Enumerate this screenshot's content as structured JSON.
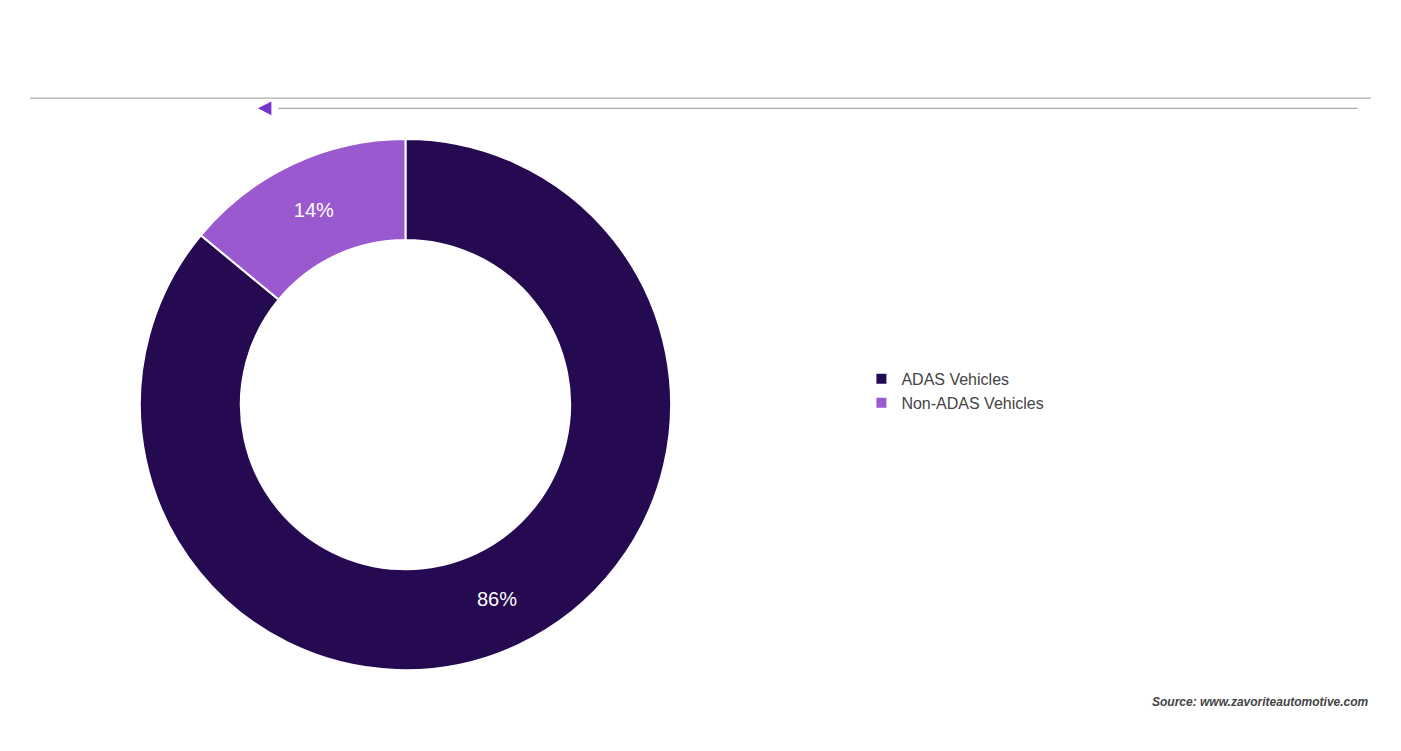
{
  "chart_data": {
    "type": "donut",
    "categories": [
      "ADAS Vehicles",
      "Non-ADAS Vehicles"
    ],
    "values": [
      86,
      14
    ],
    "value_labels": [
      "86%",
      "14%"
    ],
    "colors": [
      "#250a52",
      "#9b59d0"
    ],
    "data_labels": true,
    "legend": "right",
    "annotations": [
      "Source: www.zavoriteautomotive.com"
    ]
  }
}
